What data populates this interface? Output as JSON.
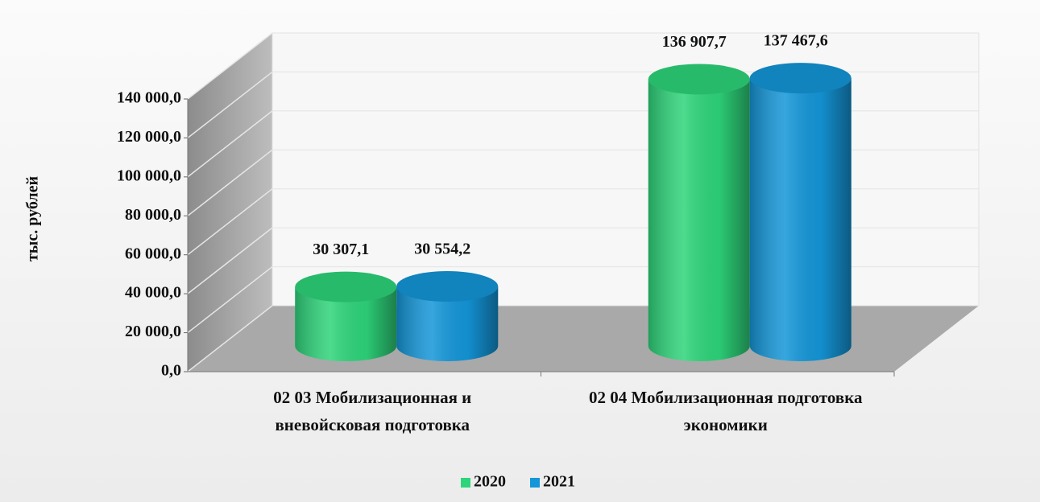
{
  "chart_data": {
    "type": "bar3d",
    "ylabel": "тыс. рублей",
    "categories": [
      "02 03 Мобилизационная и вневойсковая подготовка",
      "02 04 Мобилизационная подготовка экономики"
    ],
    "series": [
      {
        "name": "2020",
        "color": "#2ed47a",
        "values": [
          30307.1,
          136907.7
        ],
        "value_labels": [
          "30 307,1",
          "136 907,7"
        ]
      },
      {
        "name": "2021",
        "color": "#1496d8",
        "values": [
          30554.2,
          137467.6
        ],
        "value_labels": [
          "30 554,2",
          "137 467,6"
        ]
      }
    ],
    "ylim": [
      0,
      140000
    ],
    "yticks": [
      {
        "value": 0,
        "label": "0,0"
      },
      {
        "value": 20000,
        "label": "20 000,0"
      },
      {
        "value": 40000,
        "label": "40 000,0"
      },
      {
        "value": 60000,
        "label": "60 000,0"
      },
      {
        "value": 80000,
        "label": "80 000,0"
      },
      {
        "value": 100000,
        "label": "100 000,0"
      },
      {
        "value": 120000,
        "label": "120 000,0"
      },
      {
        "value": 140000,
        "label": "140 000,0"
      }
    ],
    "grid": true,
    "legend": "bottom"
  }
}
